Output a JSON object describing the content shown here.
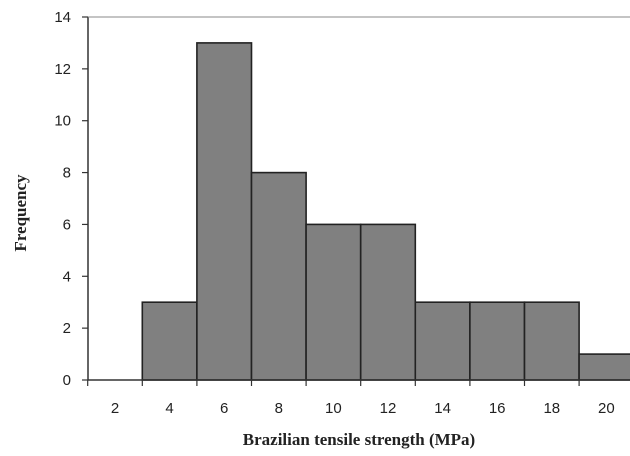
{
  "chart_data": {
    "type": "bar",
    "title": "",
    "xlabel": "Brazilian tensile strength (MPa)",
    "ylabel": "Frequency",
    "categories": [
      "2",
      "4",
      "6",
      "8",
      "10",
      "12",
      "14",
      "16",
      "18",
      "20"
    ],
    "values": [
      0,
      3,
      13,
      8,
      6,
      6,
      3,
      3,
      3,
      1
    ],
    "ylim": [
      0,
      14
    ],
    "yticks": [
      "0",
      "2",
      "4",
      "6",
      "8",
      "10",
      "12",
      "14"
    ],
    "grid": false,
    "legend": "none",
    "colors": {
      "bar_fill": "#808080",
      "bar_stroke": "#222222",
      "axis": "#333333",
      "top_line": "#888888"
    }
  }
}
